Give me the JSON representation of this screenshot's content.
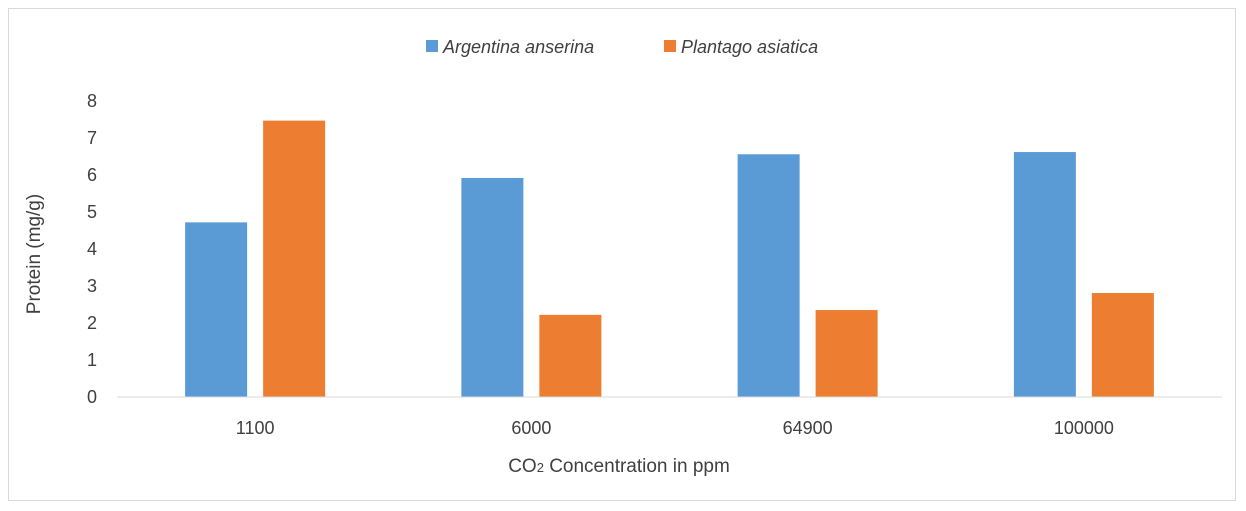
{
  "chart_data": {
    "type": "bar",
    "title": "",
    "xlabel": "CO2 Concentration in ppm",
    "xlabel_main": "CO",
    "xlabel_sub": "2",
    "xlabel_rest": " Concentration in ppm",
    "ylabel": "Protein (mg/g)",
    "categories": [
      "1100",
      "6000",
      "64900",
      "100000"
    ],
    "series": [
      {
        "name": "Argentina anserina",
        "color": "#5b9bd5",
        "values": [
          4.72,
          5.92,
          6.56,
          6.62
        ]
      },
      {
        "name": "Plantago asiatica",
        "color": "#ed7d31",
        "values": [
          7.47,
          2.22,
          2.35,
          2.81
        ]
      }
    ],
    "ylim": [
      0,
      8
    ],
    "yticks": [
      "0",
      "1",
      "2",
      "3",
      "4",
      "5",
      "6",
      "7",
      "8"
    ],
    "grid": false,
    "legend_position": "top"
  }
}
